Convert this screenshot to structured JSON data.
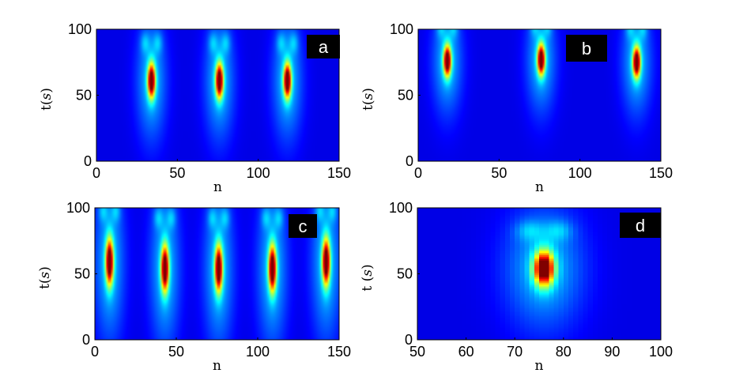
{
  "chart_data": [
    {
      "type": "heatmap",
      "panel_label": "a",
      "xlabel": "n",
      "ylabel_prefix": "t(",
      "ylabel_var": "s",
      "ylabel_suffix": ")",
      "xlim": [
        0,
        150
      ],
      "ylim": [
        0,
        100
      ],
      "xticks": [
        0,
        50,
        100,
        150
      ],
      "yticks": [
        0,
        50,
        100
      ],
      "peaks": [
        {
          "n": 34,
          "t": 61,
          "width": 1.6,
          "length": 9
        },
        {
          "n": 76,
          "t": 61,
          "width": 1.6,
          "length": 9
        },
        {
          "n": 118,
          "t": 61,
          "width": 1.6,
          "length": 9
        }
      ],
      "grid": false
    },
    {
      "type": "heatmap",
      "panel_label": "b",
      "xlabel": "n",
      "ylabel_prefix": "t(",
      "ylabel_var": "s",
      "ylabel_suffix": ")",
      "xlim": [
        0,
        150
      ],
      "ylim": [
        0,
        100
      ],
      "xticks": [
        0,
        50,
        100,
        150
      ],
      "yticks": [
        0,
        50,
        100
      ],
      "peaks": [
        {
          "n": 18,
          "t": 76,
          "width": 1.6,
          "length": 8
        },
        {
          "n": 76,
          "t": 77,
          "width": 1.6,
          "length": 8
        },
        {
          "n": 135,
          "t": 75,
          "width": 1.6,
          "length": 8
        }
      ],
      "grid": false
    },
    {
      "type": "heatmap",
      "panel_label": "c",
      "xlabel": "n",
      "ylabel_prefix": "t(",
      "ylabel_var": "s",
      "ylabel_suffix": ")",
      "xlim": [
        0,
        150
      ],
      "ylim": [
        0,
        100
      ],
      "xticks": [
        0,
        50,
        100,
        150
      ],
      "yticks": [
        0,
        50,
        100
      ],
      "peaks": [
        {
          "n": 9,
          "t": 59,
          "width": 1.6,
          "length": 12
        },
        {
          "n": 43,
          "t": 54,
          "width": 1.6,
          "length": 12
        },
        {
          "n": 76,
          "t": 54,
          "width": 1.6,
          "length": 12
        },
        {
          "n": 109,
          "t": 54,
          "width": 1.6,
          "length": 12
        },
        {
          "n": 142,
          "t": 59,
          "width": 1.6,
          "length": 12
        }
      ],
      "grid": false
    },
    {
      "type": "heatmap",
      "panel_label": "d",
      "xlabel": "n",
      "ylabel_prefix": "t (",
      "ylabel_var": "s",
      "ylabel_suffix": ")",
      "xlim": [
        50,
        100
      ],
      "ylim": [
        0,
        100
      ],
      "xticks": [
        50,
        60,
        70,
        80,
        90,
        100
      ],
      "yticks": [
        0,
        50,
        100
      ],
      "peaks": [
        {
          "n": 76,
          "t": 54,
          "width": 1.4,
          "length": 9
        }
      ],
      "grid": false
    }
  ]
}
